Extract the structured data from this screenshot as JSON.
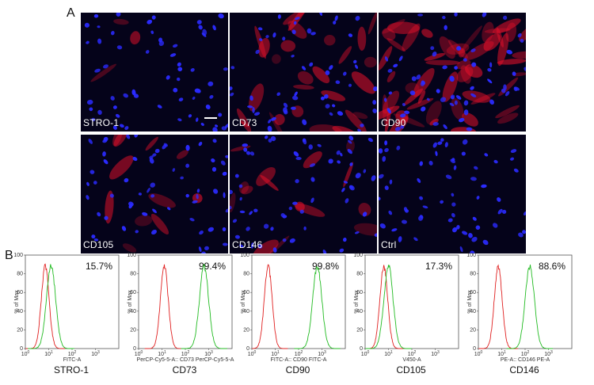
{
  "panel_labels": {
    "a": "A",
    "b": "B"
  },
  "microscopy": {
    "tiles": [
      {
        "label": "STRO-1",
        "red": 0.05,
        "scale_bar": true
      },
      {
        "label": "CD73",
        "red": 0.45,
        "scale_bar": false
      },
      {
        "label": "CD90",
        "red": 0.9,
        "scale_bar": false
      },
      {
        "label": "CD105",
        "red": 0.18,
        "scale_bar": false
      },
      {
        "label": "CD146",
        "red": 0.25,
        "scale_bar": false
      },
      {
        "label": "Ctrl",
        "red": 0.0,
        "scale_bar": false
      }
    ],
    "colors": {
      "nuclei": "#2b2bff",
      "marker": "#e0102a",
      "background": "#05031a"
    }
  },
  "chart_data": [
    {
      "type": "line",
      "name": "STRO-1",
      "percent": "15.7%",
      "channel": "FITC-A",
      "ylabel": "% of Max",
      "yticks": [
        "0",
        "20",
        "40",
        "60",
        "80",
        "100"
      ],
      "xticks": [
        "10^0",
        "10^1",
        "10^2",
        "10^3"
      ],
      "ctrl_peak": 0.85,
      "stain_peak": 1.1,
      "ctrl_color": "#e02020",
      "stain_color": "#22bb22"
    },
    {
      "type": "line",
      "name": "CD73",
      "percent": "99.4%",
      "channel": "PerCP-Cy5-5-A:: CD73 PerCP-Cy5-5-A",
      "ylabel": "% of Max",
      "yticks": [
        "0",
        "20",
        "40",
        "60",
        "80",
        "100"
      ],
      "xticks": [
        "10^0",
        "10^1",
        "10^2",
        "10^3"
      ],
      "ctrl_peak": 1.1,
      "stain_peak": 2.8,
      "ctrl_color": "#e02020",
      "stain_color": "#22bb22"
    },
    {
      "type": "line",
      "name": "CD90",
      "percent": "99.8%",
      "channel": "FITC-A:: CD90 FITC-A",
      "ylabel": "% of Max",
      "yticks": [
        "0",
        "20",
        "40",
        "60",
        "80",
        "100"
      ],
      "xticks": [
        "10^0",
        "10^1",
        "10^2",
        "10^3"
      ],
      "ctrl_peak": 0.7,
      "stain_peak": 2.8,
      "ctrl_color": "#e02020",
      "stain_color": "#22bb22"
    },
    {
      "type": "line",
      "name": "CD105",
      "percent": "17.3%",
      "channel": "V450-A",
      "ylabel": "% of Max",
      "yticks": [
        "0",
        "20",
        "40",
        "60",
        "80",
        "100"
      ],
      "xticks": [
        "10^0",
        "10^1",
        "10^2",
        "10^3"
      ],
      "ctrl_peak": 0.8,
      "stain_peak": 1.0,
      "ctrl_color": "#e02020",
      "stain_color": "#22bb22"
    },
    {
      "type": "line",
      "name": "CD146",
      "percent": "88.6%",
      "channel": "PE-A:: CD146 PE-A",
      "ylabel": "% of Max",
      "yticks": [
        "0",
        "20",
        "40",
        "60",
        "80",
        "100"
      ],
      "xticks": [
        "10^0",
        "10^1",
        "10^2",
        "10^3"
      ],
      "ctrl_peak": 0.85,
      "stain_peak": 2.2,
      "ctrl_color": "#e02020",
      "stain_color": "#22bb22"
    }
  ]
}
